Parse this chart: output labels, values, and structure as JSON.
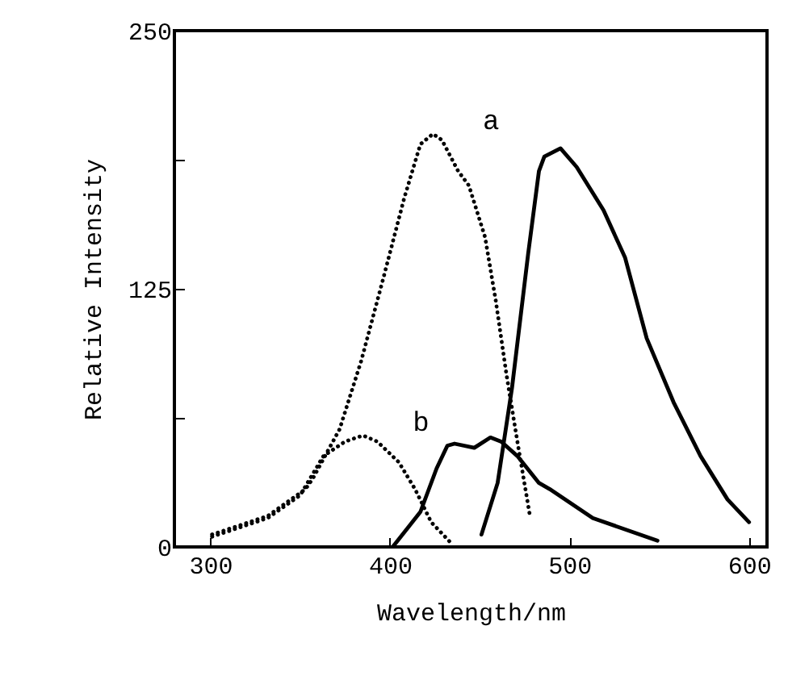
{
  "chart_data": {
    "type": "line",
    "xlabel": "Wavelength/nm",
    "ylabel": "Relative Intensity",
    "xlim": [
      280,
      610
    ],
    "ylim": [
      0,
      250
    ],
    "xticks": [
      300,
      400,
      500,
      600
    ],
    "yticks": [
      0,
      {
        "value": 62.5,
        "label": null
      },
      125,
      {
        "value": 187.5,
        "label": null
      },
      250
    ],
    "grid": false,
    "marker": "none",
    "series": [
      {
        "color": "#000000",
        "line_style": "dotted",
        "x": [
          301,
          332,
          353,
          357,
          372,
          384,
          396,
          408,
          417,
          424,
          429,
          438,
          444,
          453,
          459,
          465,
          471,
          478
        ],
        "values": [
          6,
          15,
          28,
          33,
          57,
          90,
          129,
          169,
          195,
          200,
          197,
          182,
          175,
          150,
          119,
          83,
          51,
          15
        ]
      },
      {
        "color": "#000000",
        "line_style": "dotted",
        "x": [
          301,
          332,
          350,
          363,
          375,
          385,
          393,
          405,
          414,
          423,
          435
        ],
        "values": [
          5,
          14,
          25,
          44,
          51,
          54,
          51,
          41,
          28,
          12,
          1
        ]
      },
      {
        "color": "#000000",
        "line_style": "solid",
        "x": [
          451,
          460,
          468,
          477,
          483,
          486,
          495,
          504,
          519,
          531,
          543,
          558,
          573,
          588,
          600
        ],
        "values": [
          6,
          31,
          77,
          142,
          182,
          189,
          193,
          184,
          163,
          140,
          101,
          70,
          44,
          23,
          12
        ]
      },
      {
        "color": "#000000",
        "line_style": "solid",
        "x": [
          402,
          417,
          426,
          432,
          436,
          447,
          456,
          462,
          471,
          483,
          489,
          513,
          549
        ],
        "values": [
          0.5,
          17,
          38,
          49,
          50,
          48,
          53,
          51,
          44,
          31,
          28,
          14,
          3
        ]
      }
    ],
    "annotations": [
      "a",
      "b"
    ]
  }
}
